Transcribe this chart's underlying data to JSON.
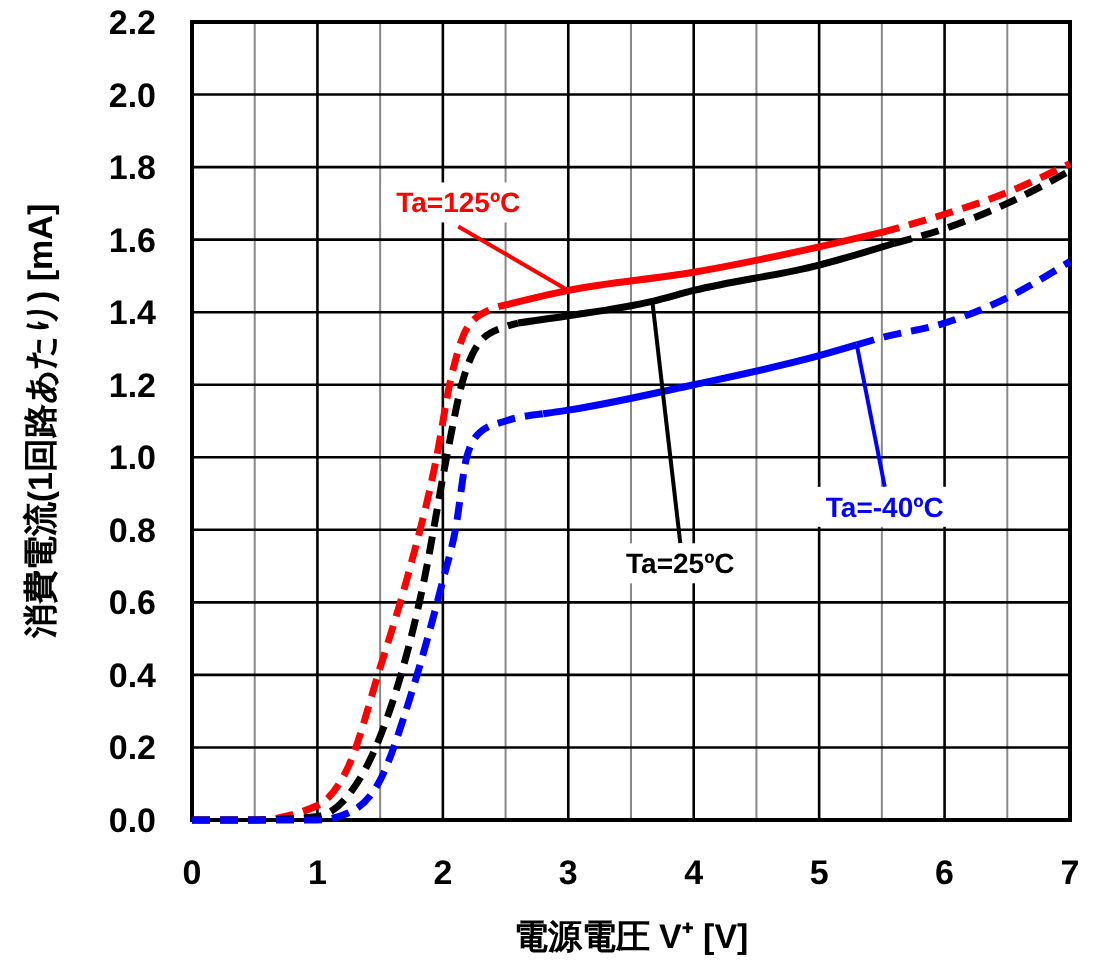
{
  "chart_data": {
    "type": "line",
    "xlabel": "電源電圧 V⁺ [V]",
    "ylabel": "消費電流(1回路あたり) [mA]",
    "xlim": [
      0,
      7
    ],
    "ylim": [
      0,
      2.2
    ],
    "xticks": [
      0,
      {
        "value": 0.5,
        "label": null
      },
      1,
      {
        "value": 1.5,
        "label": null
      },
      2,
      {
        "value": 2.5,
        "label": null
      },
      3,
      {
        "value": 3.5,
        "label": null
      },
      4,
      {
        "value": 4.5,
        "label": null
      },
      5,
      {
        "value": 5.5,
        "label": null
      },
      6,
      {
        "value": 6.5,
        "label": null
      },
      7
    ],
    "yticks": [
      {
        "value": 0,
        "label": "0.0"
      },
      0.2,
      0.4,
      0.6,
      0.8,
      {
        "value": 1,
        "label": "1.0"
      },
      1.2,
      1.4,
      1.6,
      1.8,
      {
        "value": 2,
        "label": "2.0"
      },
      2.2
    ],
    "grid": true,
    "marker": "none",
    "series": [
      {
        "color": "#ff0000",
        "line_style": "dashed",
        "x": [
          0,
          0.5,
          1,
          1.25,
          1.5,
          1.71,
          1.95,
          2.06,
          2.2,
          2.4,
          2.5
        ],
        "values": [
          0,
          0,
          0.04,
          0.15,
          0.42,
          0.66,
          1.0,
          1.21,
          1.36,
          1.41,
          1.42
        ]
      },
      {
        "name": "Ta=125ºC",
        "color": "#ff0000",
        "line_style": "solid",
        "x": [
          2.5,
          3,
          4,
          5,
          5.5
        ],
        "values": [
          1.42,
          1.46,
          1.51,
          1.58,
          1.62
        ]
      },
      {
        "color": "#ff0000",
        "line_style": "dashed",
        "x": [
          5.5,
          6,
          6.5,
          7
        ],
        "values": [
          1.62,
          1.67,
          1.73,
          1.81
        ]
      },
      {
        "color": "#000000",
        "line_style": "dashed",
        "x": [
          0,
          0.5,
          1,
          1.25,
          1.5,
          1.85,
          2.03,
          2.15,
          2.3,
          2.5,
          2.6
        ],
        "values": [
          0,
          0,
          0.01,
          0.07,
          0.23,
          0.66,
          1.0,
          1.2,
          1.32,
          1.36,
          1.37
        ]
      },
      {
        "name": "Ta=25ºC",
        "color": "#000000",
        "line_style": "solid",
        "x": [
          2.6,
          3,
          3.67,
          4,
          5,
          5.6
        ],
        "values": [
          1.37,
          1.39,
          1.43,
          1.46,
          1.53,
          1.59
        ]
      },
      {
        "color": "#000000",
        "line_style": "dashed",
        "x": [
          5.6,
          6,
          6.5,
          7
        ],
        "values": [
          1.59,
          1.63,
          1.7,
          1.79
        ]
      },
      {
        "color": "#0000ff",
        "line_style": "dashed",
        "x": [
          0,
          1,
          1.25,
          1.5,
          1.75,
          2,
          2.1,
          2.19,
          2.3,
          2.5,
          2.8
        ],
        "values": [
          0,
          0,
          0.02,
          0.11,
          0.35,
          0.66,
          0.8,
          1.0,
          1.07,
          1.1,
          1.12
        ]
      },
      {
        "name": "Ta=-40ºC",
        "color": "#0000ff",
        "line_style": "solid",
        "x": [
          2.8,
          3,
          4,
          5,
          5.3
        ],
        "values": [
          1.12,
          1.13,
          1.2,
          1.28,
          1.31
        ]
      },
      {
        "color": "#0000ff",
        "line_style": "dashed",
        "x": [
          5.3,
          5.5,
          6,
          6.5,
          7
        ],
        "values": [
          1.31,
          1.33,
          1.37,
          1.44,
          1.54
        ]
      }
    ]
  }
}
